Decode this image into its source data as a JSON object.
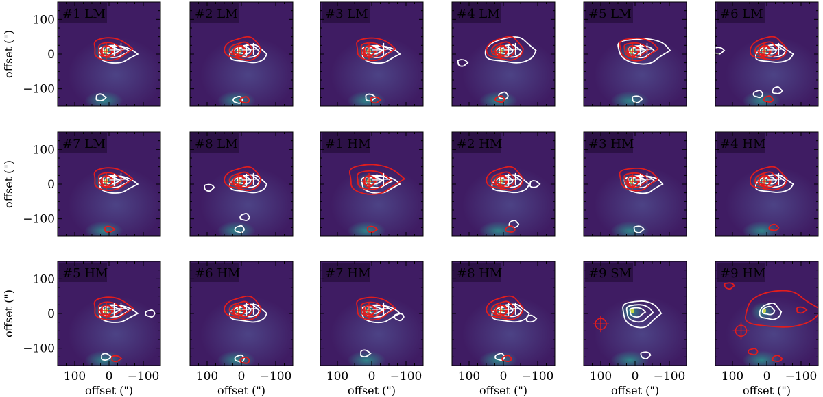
{
  "chart_data": {
    "type": "contour",
    "layout": "3x6 grid of map panels",
    "xlabel": "offset (\")",
    "ylabel": "offset (\")",
    "xlim": [
      150,
      -150
    ],
    "ylim": [
      -150,
      150
    ],
    "xticks": [
      100,
      0,
      -100
    ],
    "yticks": [
      100,
      0,
      -100
    ],
    "colors": {
      "background_map": "#3f1c63",
      "map_glow": "#2d8f8c",
      "contour_a": "#ffffff",
      "contour_b": "#e21d1d",
      "marker": "#e21d1d",
      "peak": "#c9d84a",
      "label_box": "#2a1142"
    },
    "panels": [
      {
        "label": "#1 LM",
        "variant": "std",
        "extra_white": [
          [
            25,
            -125
          ]
        ],
        "extra_red": []
      },
      {
        "label": "#2 LM",
        "variant": "std",
        "extra_white": [
          [
            10,
            -132
          ]
        ],
        "extra_red": [
          [
            -10,
            -132
          ]
        ]
      },
      {
        "label": "#3 LM",
        "variant": "std",
        "extra_white": [
          [
            5,
            -125
          ]
        ],
        "extra_red": [
          [
            -10,
            -132
          ]
        ]
      },
      {
        "label": "#4 LM",
        "variant": "std_wide",
        "extra_white": [
          [
            120,
            -25
          ],
          [
            0,
            -120
          ]
        ],
        "extra_red": [
          [
            10,
            -130
          ]
        ]
      },
      {
        "label": "#5 LM",
        "variant": "std_wide",
        "extra_white": [
          [
            -5,
            -130
          ]
        ],
        "extra_red": []
      },
      {
        "label": "#6 LM",
        "variant": "std",
        "extra_white": [
          [
            140,
            10
          ],
          [
            25,
            -115
          ],
          [
            -30,
            -105
          ]
        ],
        "extra_red": [
          [
            -5,
            -130
          ]
        ]
      },
      {
        "label": "#7 LM",
        "variant": "std",
        "extra_white": [],
        "extra_red": [
          [
            0,
            -130
          ]
        ]
      },
      {
        "label": "#8 LM",
        "variant": "std",
        "extra_white": [
          [
            95,
            -10
          ],
          [
            -10,
            -95
          ],
          [
            5,
            -130
          ]
        ],
        "extra_red": []
      },
      {
        "label": "#1 HM",
        "variant": "big_red",
        "extra_white": [],
        "extra_red": [
          [
            0,
            -130
          ]
        ]
      },
      {
        "label": "#2 HM",
        "variant": "std",
        "extra_white": [
          [
            -30,
            -115
          ],
          [
            -90,
            0
          ]
        ],
        "extra_red": [
          [
            -20,
            -130
          ]
        ]
      },
      {
        "label": "#3 HM",
        "variant": "std",
        "extra_white": [
          [
            -10,
            -130
          ]
        ],
        "extra_red": []
      },
      {
        "label": "#4 HM",
        "variant": "std_nomarker",
        "extra_white": [],
        "extra_red": [
          [
            -20,
            -125
          ]
        ]
      },
      {
        "label": "#5 HM",
        "variant": "std",
        "extra_white": [
          [
            10,
            -125
          ],
          [
            -120,
            0
          ]
        ],
        "extra_red": [
          [
            -20,
            -130
          ]
        ]
      },
      {
        "label": "#6 HM",
        "variant": "std",
        "extra_white": [
          [
            5,
            -130
          ]
        ],
        "extra_red": [
          [
            -10,
            -135
          ]
        ]
      },
      {
        "label": "#7 HM",
        "variant": "std",
        "extra_white": [
          [
            20,
            -115
          ],
          [
            -80,
            -10
          ]
        ],
        "extra_red": []
      },
      {
        "label": "#8 HM",
        "variant": "std",
        "extra_white": [
          [
            10,
            -125
          ],
          [
            -80,
            -15
          ]
        ],
        "extra_red": [
          [
            -10,
            -130
          ]
        ]
      },
      {
        "label": "#9 SM",
        "variant": "sm",
        "extra_white": [
          [
            -30,
            -120
          ]
        ],
        "extra_red": []
      },
      {
        "label": "#9 HM",
        "variant": "hm9",
        "extra_white": [],
        "extra_red": [
          [
            110,
            80
          ],
          [
            -100,
            10
          ],
          [
            40,
            -110
          ],
          [
            -30,
            -130
          ]
        ]
      }
    ]
  }
}
